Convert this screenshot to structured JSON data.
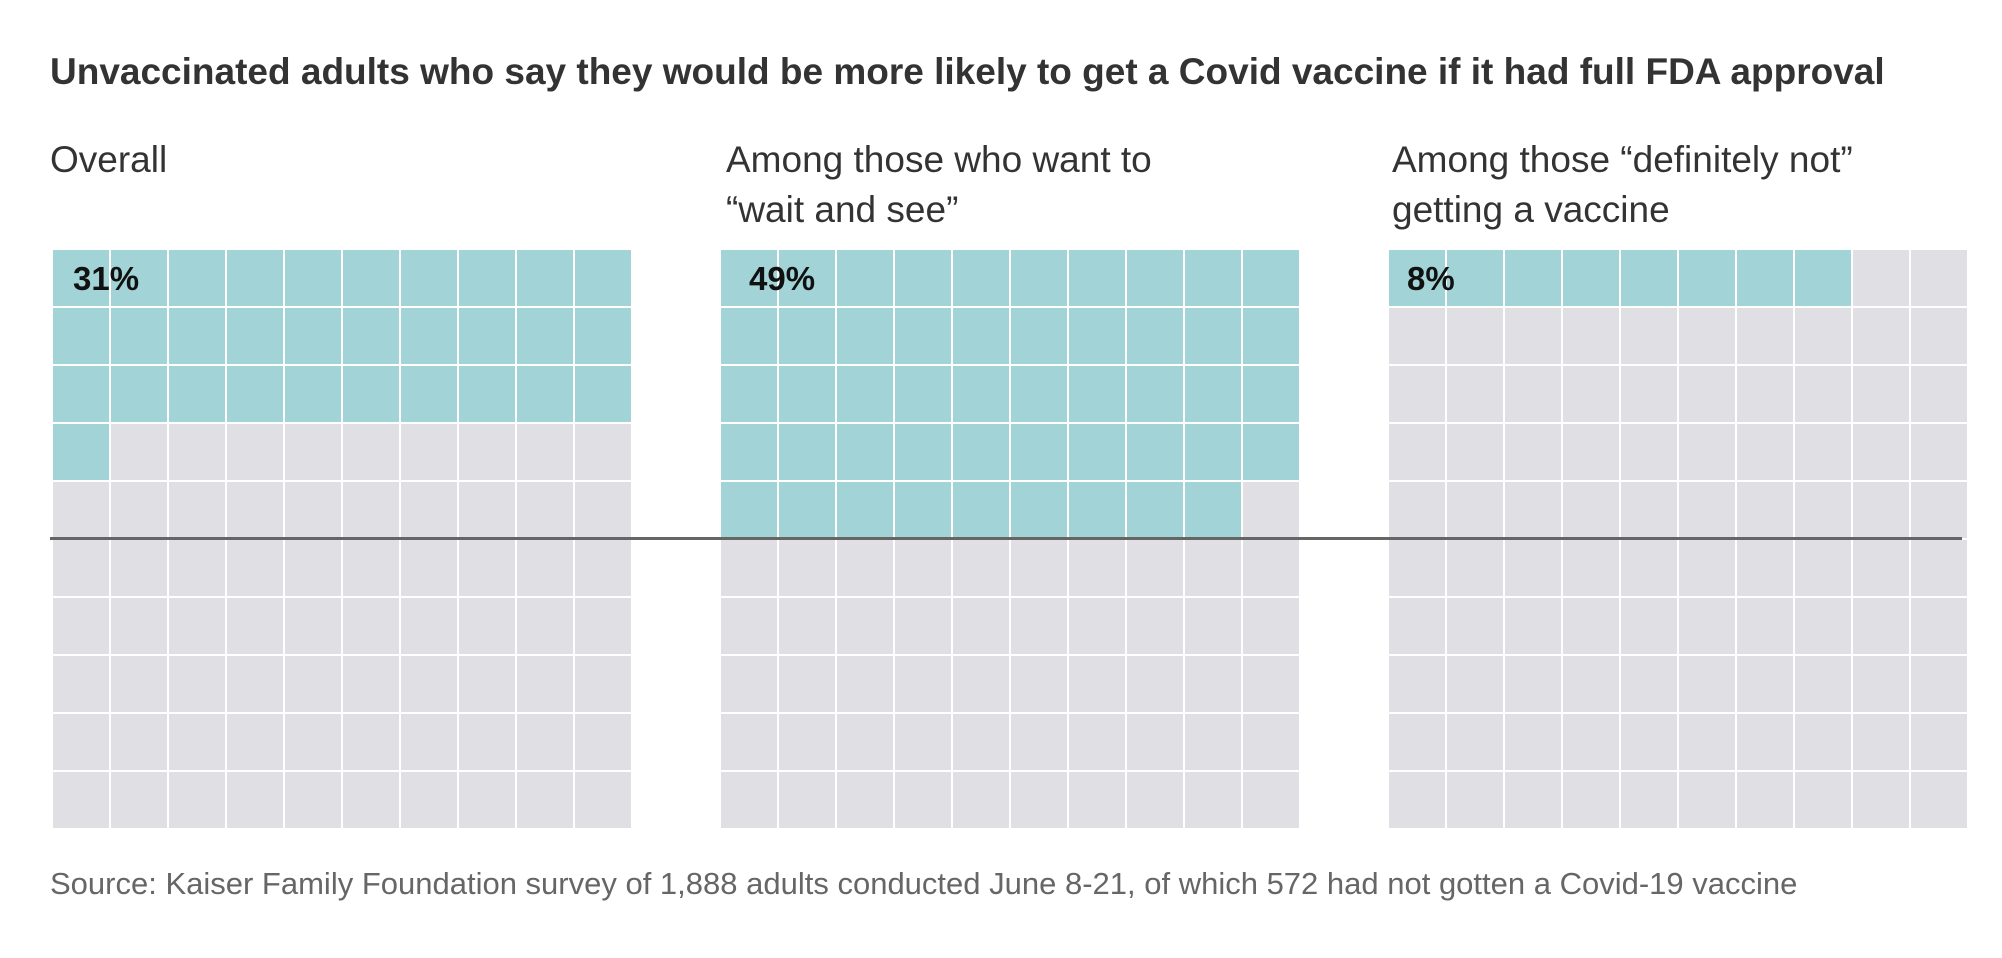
{
  "title": "Unvaccinated adults who say they would be more likely to get a Covid vaccine if it had full FDA approval",
  "source": "Source: Kaiser Family Foundation survey of 1,888 adults conducted June 8-21, of which 572 had not gotten a Covid-19 vaccine",
  "chart_data": {
    "type": "waffle",
    "grid": {
      "rows": 10,
      "cols": 10,
      "total": 100
    },
    "colors": {
      "filled": "#a2d4d7",
      "empty": "#dfdfe4"
    },
    "reference_line_at_percent": 50,
    "panels": [
      {
        "label_lines": [
          "Overall"
        ],
        "value": 31,
        "value_label": "31%"
      },
      {
        "label_lines": [
          "Among those who want to",
          "“wait and see”"
        ],
        "value": 49,
        "value_label": "49%"
      },
      {
        "label_lines": [
          "Among those “definitely not”",
          "getting a vaccine"
        ],
        "value": 8,
        "value_label": "8%"
      }
    ]
  }
}
